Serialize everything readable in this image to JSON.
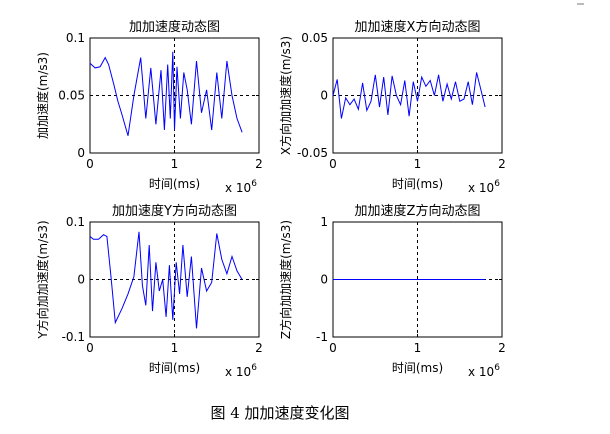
{
  "caption": "图 4  加加速度变化图",
  "chart_data": [
    {
      "type": "line",
      "title": "加加速度动态图",
      "xlabel": "时间(ms)",
      "ylabel": "加加速度(m/s3)",
      "x_multiplier": "x 10",
      "x_exponent": "6",
      "xlim": [
        0,
        2
      ],
      "ylim": [
        0,
        0.1
      ],
      "xticks": [
        0,
        1,
        2
      ],
      "xtick_labels": [
        "0",
        "1",
        "2"
      ],
      "yticks": [
        0,
        0.05,
        0.1
      ],
      "ytick_labels": [
        "0",
        "0.05",
        "0.1"
      ],
      "line_color": "#0000ff",
      "crosshair": {
        "x": 1,
        "y": 0.05
      },
      "series": [
        {
          "x": [
            0,
            0.06,
            0.12,
            0.18,
            0.22,
            0.28,
            0.33,
            0.38,
            0.45,
            0.52,
            0.6,
            0.66,
            0.72,
            0.78,
            0.84,
            0.88,
            0.92,
            0.95,
            0.98,
            1.0,
            1.03,
            1.07,
            1.11,
            1.15,
            1.2,
            1.26,
            1.32,
            1.38,
            1.44,
            1.5,
            1.56,
            1.62,
            1.68,
            1.74,
            1.8
          ],
          "y": [
            0.078,
            0.074,
            0.075,
            0.083,
            0.077,
            0.06,
            0.045,
            0.033,
            0.015,
            0.05,
            0.083,
            0.03,
            0.074,
            0.025,
            0.072,
            0.02,
            0.077,
            0.03,
            0.088,
            0.02,
            0.075,
            0.03,
            0.07,
            0.055,
            0.025,
            0.08,
            0.035,
            0.055,
            0.02,
            0.07,
            0.03,
            0.08,
            0.05,
            0.03,
            0.018
          ]
        }
      ]
    },
    {
      "type": "line",
      "title": "加加速度X方向动态图",
      "xlabel": "时间(ms)",
      "ylabel": "X方向加加速度(m/s3)",
      "x_multiplier": "x 10",
      "x_exponent": "6",
      "xlim": [
        0,
        2
      ],
      "ylim": [
        -0.05,
        0.05
      ],
      "xticks": [
        0,
        1,
        2
      ],
      "xtick_labels": [
        "0",
        "1",
        "2"
      ],
      "yticks": [
        -0.05,
        0,
        0.05
      ],
      "ytick_labels": [
        "-0.05",
        "0",
        "0.05"
      ],
      "line_color": "#0000ff",
      "crosshair": {
        "x": 1,
        "y": 0
      },
      "series": [
        {
          "x": [
            0,
            0.05,
            0.1,
            0.15,
            0.2,
            0.25,
            0.3,
            0.35,
            0.4,
            0.45,
            0.5,
            0.55,
            0.6,
            0.65,
            0.7,
            0.75,
            0.8,
            0.85,
            0.9,
            0.95,
            1.0,
            1.05,
            1.1,
            1.15,
            1.2,
            1.25,
            1.3,
            1.35,
            1.4,
            1.45,
            1.5,
            1.55,
            1.6,
            1.65,
            1.7,
            1.75,
            1.8
          ],
          "y": [
            0.0,
            0.014,
            -0.02,
            -0.002,
            -0.008,
            -0.003,
            -0.012,
            0.011,
            -0.013,
            -0.005,
            0.018,
            -0.01,
            0.016,
            -0.017,
            0.017,
            0.0,
            -0.008,
            0.013,
            -0.018,
            0.012,
            -0.005,
            0.016,
            0.008,
            0.013,
            0.0,
            0.018,
            -0.005,
            0.01,
            -0.003,
            0.012,
            -0.005,
            -0.003,
            0.012,
            -0.008,
            0.02,
            0.005,
            -0.01
          ]
        }
      ]
    },
    {
      "type": "line",
      "title": "加加速度Y方向动态图",
      "xlabel": "时间(ms)",
      "ylabel": "Y方向加加速度(m/s3)",
      "x_multiplier": "x 10",
      "x_exponent": "6",
      "xlim": [
        0,
        2
      ],
      "ylim": [
        -0.1,
        0.1
      ],
      "xticks": [
        0,
        1,
        2
      ],
      "xtick_labels": [
        "0",
        "1",
        "2"
      ],
      "yticks": [
        -0.1,
        0,
        0.1
      ],
      "ytick_labels": [
        "-0.1",
        "0",
        "0.1"
      ],
      "line_color": "#0000ff",
      "crosshair": {
        "x": 1,
        "y": 0
      },
      "series": [
        {
          "x": [
            0,
            0.04,
            0.1,
            0.16,
            0.2,
            0.25,
            0.3,
            0.38,
            0.45,
            0.52,
            0.58,
            0.62,
            0.66,
            0.7,
            0.74,
            0.78,
            0.82,
            0.86,
            0.9,
            0.94,
            0.98,
            1.02,
            1.06,
            1.1,
            1.15,
            1.2,
            1.26,
            1.32,
            1.38,
            1.44,
            1.5,
            1.56,
            1.62,
            1.68,
            1.74,
            1.8
          ],
          "y": [
            0.075,
            0.07,
            0.07,
            0.078,
            0.075,
            0.003,
            -0.075,
            -0.05,
            -0.025,
            0.005,
            0.083,
            -0.01,
            -0.045,
            0.06,
            -0.055,
            0.03,
            -0.02,
            0.0,
            -0.065,
            0.025,
            -0.07,
            0.03,
            -0.025,
            0.06,
            -0.03,
            0.04,
            -0.085,
            0.02,
            -0.02,
            -0.005,
            0.08,
            0.035,
            0.01,
            0.04,
            0.015,
            0.0
          ]
        }
      ]
    },
    {
      "type": "line",
      "title": "加加速度Z方向动态图",
      "xlabel": "时间(ms)",
      "ylabel": "Z方向加加速度(m/s3)",
      "x_multiplier": "x 10",
      "x_exponent": "6",
      "xlim": [
        0,
        2
      ],
      "ylim": [
        -1,
        1
      ],
      "xticks": [
        0,
        1,
        2
      ],
      "xtick_labels": [
        "0",
        "1",
        "2"
      ],
      "yticks": [
        -1,
        0,
        1
      ],
      "ytick_labels": [
        "-1",
        "0",
        "1"
      ],
      "line_color": "#0000ff",
      "crosshair": {
        "x": 1,
        "y": 0
      },
      "series": [
        {
          "x": [
            0,
            1.8
          ],
          "y": [
            0,
            0
          ]
        }
      ]
    }
  ]
}
